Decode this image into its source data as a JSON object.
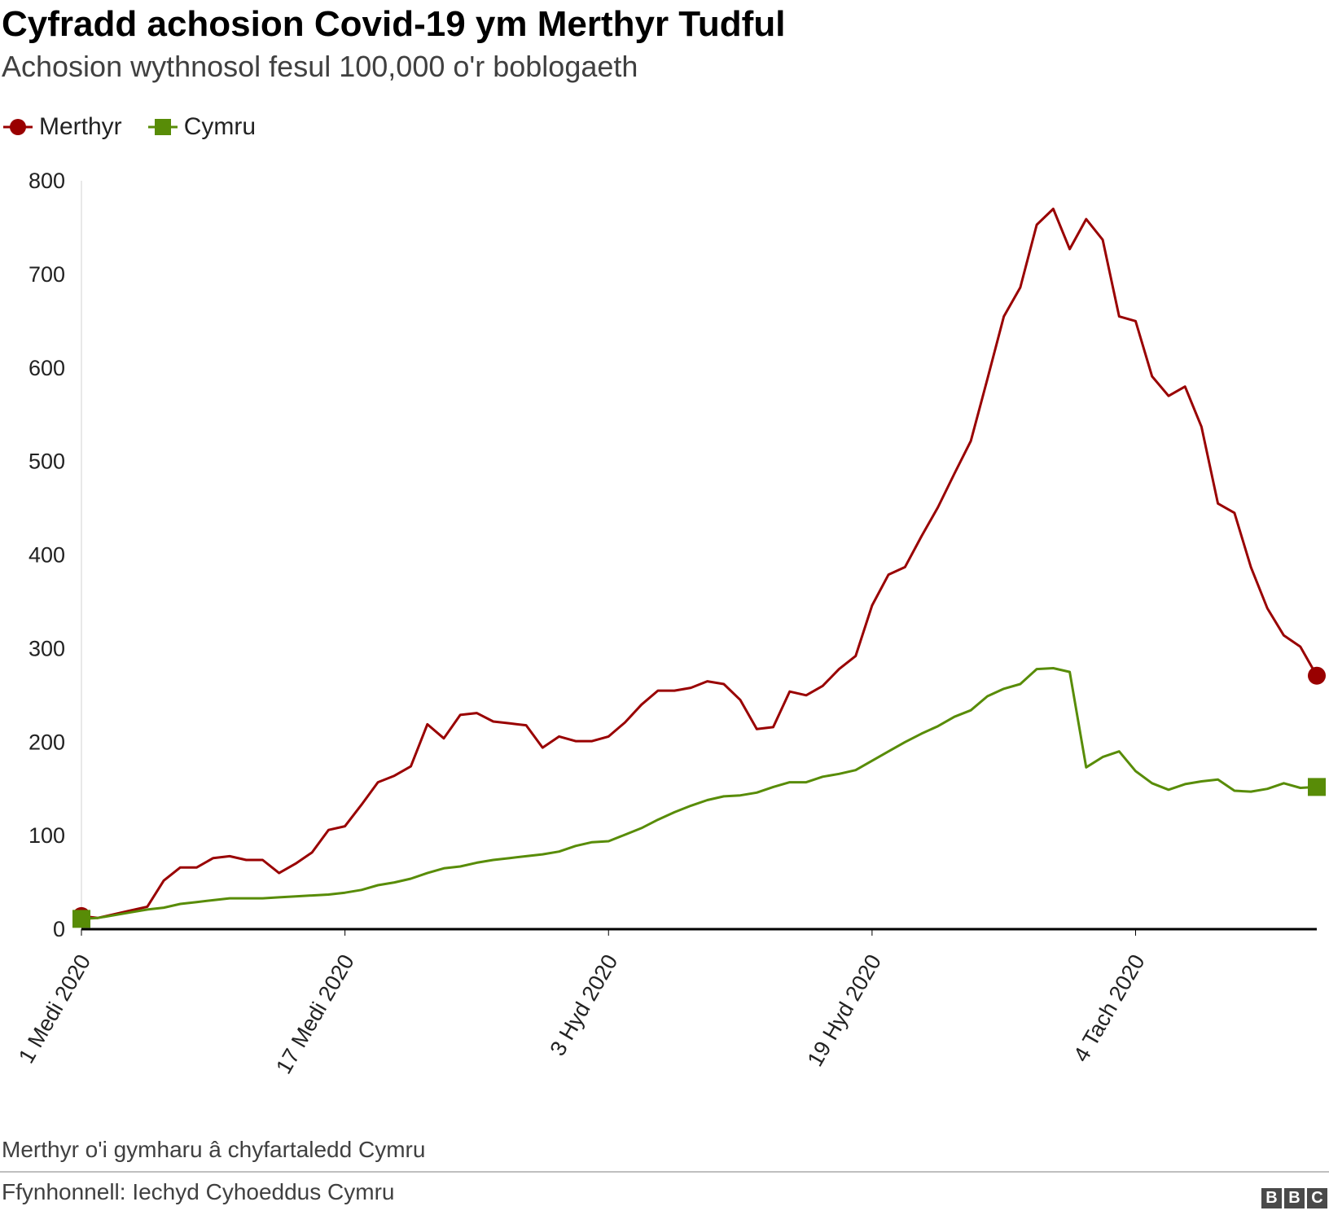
{
  "header": {
    "title": "Cyfradd achosion Covid-19 ym Merthyr Tudful",
    "subtitle": "Achosion wythnosol fesul 100,000 o'r boblogaeth"
  },
  "legend": [
    {
      "name": "Merthyr",
      "color": "#990000",
      "marker": "circle"
    },
    {
      "name": "Cymru",
      "color": "#588C07",
      "marker": "square"
    }
  ],
  "footer": {
    "note": "Merthyr o'i gymharu â chyfartaledd Cymru",
    "source": "Ffynhonnell: Iechyd Cyhoeddus Cymru",
    "logo_letters": [
      "B",
      "B",
      "C"
    ]
  },
  "chart_data": {
    "type": "line",
    "title": "Cyfradd achosion Covid-19 ym Merthyr Tudful",
    "subtitle": "Achosion wythnosol fesul 100,000 o'r boblogaeth",
    "xlabel": "",
    "ylabel": "",
    "ylim": [
      0,
      800
    ],
    "yticks": [
      0,
      100,
      200,
      300,
      400,
      500,
      600,
      700,
      800
    ],
    "x_start": "2020-09-01",
    "x_end": "2020-11-15",
    "xticks": [
      {
        "date": "2020-09-01",
        "label": "1 Medi 2020"
      },
      {
        "date": "2020-09-17",
        "label": "17 Medi 2020"
      },
      {
        "date": "2020-10-03",
        "label": "3 Hyd 2020"
      },
      {
        "date": "2020-10-19",
        "label": "19 Hyd 2020"
      },
      {
        "date": "2020-11-04",
        "label": "4 Tach 2020"
      }
    ],
    "grid": false,
    "legend_position": "top-left",
    "series": [
      {
        "name": "Merthyr",
        "color": "#990000",
        "marker": "circle",
        "x": [
          "2020-09-01",
          "2020-09-02",
          "2020-09-03",
          "2020-09-04",
          "2020-09-05",
          "2020-09-06",
          "2020-09-07",
          "2020-09-08",
          "2020-09-09",
          "2020-09-10",
          "2020-09-11",
          "2020-09-12",
          "2020-09-13",
          "2020-09-14",
          "2020-09-15",
          "2020-09-16",
          "2020-09-17",
          "2020-09-18",
          "2020-09-19",
          "2020-09-20",
          "2020-09-21",
          "2020-09-22",
          "2020-09-23",
          "2020-09-24",
          "2020-09-25",
          "2020-09-26",
          "2020-09-27",
          "2020-09-28",
          "2020-09-29",
          "2020-09-30",
          "2020-10-01",
          "2020-10-02",
          "2020-10-03",
          "2020-10-04",
          "2020-10-05",
          "2020-10-06",
          "2020-10-07",
          "2020-10-08",
          "2020-10-09",
          "2020-10-10",
          "2020-10-11",
          "2020-10-12",
          "2020-10-13",
          "2020-10-14",
          "2020-10-15",
          "2020-10-16",
          "2020-10-17",
          "2020-10-18",
          "2020-10-19",
          "2020-10-20",
          "2020-10-21",
          "2020-10-22",
          "2020-10-23",
          "2020-10-24",
          "2020-10-25",
          "2020-10-26",
          "2020-10-27",
          "2020-10-28",
          "2020-10-29",
          "2020-10-30",
          "2020-10-31",
          "2020-11-01",
          "2020-11-02",
          "2020-11-03",
          "2020-11-04",
          "2020-11-05",
          "2020-11-06",
          "2020-11-07",
          "2020-11-08",
          "2020-11-09",
          "2020-11-10",
          "2020-11-11",
          "2020-11-12",
          "2020-11-13",
          "2020-11-14",
          "2020-11-15"
        ],
        "values": [
          14,
          12,
          16,
          20,
          24,
          52,
          66,
          66,
          76,
          78,
          74,
          74,
          60,
          70,
          82,
          106,
          110,
          133,
          157,
          164,
          174,
          219,
          204,
          229,
          231,
          222,
          220,
          218,
          194,
          206,
          201,
          201,
          206,
          221,
          240,
          255,
          255,
          258,
          265,
          262,
          245,
          214,
          216,
          254,
          250,
          260,
          278,
          292,
          346,
          379,
          387,
          420,
          451,
          487,
          522,
          588,
          655,
          686,
          753,
          770,
          727,
          759,
          737,
          655,
          650,
          591,
          570,
          580,
          537,
          455,
          445,
          387,
          343,
          314,
          302,
          271
        ]
      },
      {
        "name": "Cymru",
        "color": "#588C07",
        "marker": "square",
        "x": [
          "2020-09-01",
          "2020-09-02",
          "2020-09-03",
          "2020-09-04",
          "2020-09-05",
          "2020-09-06",
          "2020-09-07",
          "2020-09-08",
          "2020-09-09",
          "2020-09-10",
          "2020-09-11",
          "2020-09-12",
          "2020-09-13",
          "2020-09-14",
          "2020-09-15",
          "2020-09-16",
          "2020-09-17",
          "2020-09-18",
          "2020-09-19",
          "2020-09-20",
          "2020-09-21",
          "2020-09-22",
          "2020-09-23",
          "2020-09-24",
          "2020-09-25",
          "2020-09-26",
          "2020-09-27",
          "2020-09-28",
          "2020-09-29",
          "2020-09-30",
          "2020-10-01",
          "2020-10-02",
          "2020-10-03",
          "2020-10-04",
          "2020-10-05",
          "2020-10-06",
          "2020-10-07",
          "2020-10-08",
          "2020-10-09",
          "2020-10-10",
          "2020-10-11",
          "2020-10-12",
          "2020-10-13",
          "2020-10-14",
          "2020-10-15",
          "2020-10-16",
          "2020-10-17",
          "2020-10-18",
          "2020-10-19",
          "2020-10-20",
          "2020-10-21",
          "2020-10-22",
          "2020-10-23",
          "2020-10-24",
          "2020-10-25",
          "2020-10-26",
          "2020-10-27",
          "2020-10-28",
          "2020-10-29",
          "2020-10-30",
          "2020-10-31",
          "2020-11-01",
          "2020-11-02",
          "2020-11-03",
          "2020-11-04",
          "2020-11-05",
          "2020-11-06",
          "2020-11-07",
          "2020-11-08",
          "2020-11-09",
          "2020-11-10",
          "2020-11-11",
          "2020-11-12",
          "2020-11-13",
          "2020-11-14",
          "2020-11-15"
        ],
        "values": [
          11,
          12,
          15,
          18,
          21,
          23,
          27,
          29,
          31,
          33,
          33,
          33,
          34,
          35,
          36,
          37,
          39,
          42,
          47,
          50,
          54,
          60,
          65,
          67,
          71,
          74,
          76,
          78,
          80,
          83,
          89,
          93,
          94,
          101,
          108,
          117,
          125,
          132,
          138,
          142,
          143,
          146,
          152,
          157,
          157,
          163,
          166,
          170,
          180,
          190,
          200,
          209,
          217,
          227,
          234,
          249,
          257,
          262,
          278,
          279,
          275,
          173,
          184,
          190,
          169,
          156,
          149,
          155,
          158,
          160,
          148,
          147,
          150,
          156,
          151,
          152
        ]
      }
    ]
  }
}
